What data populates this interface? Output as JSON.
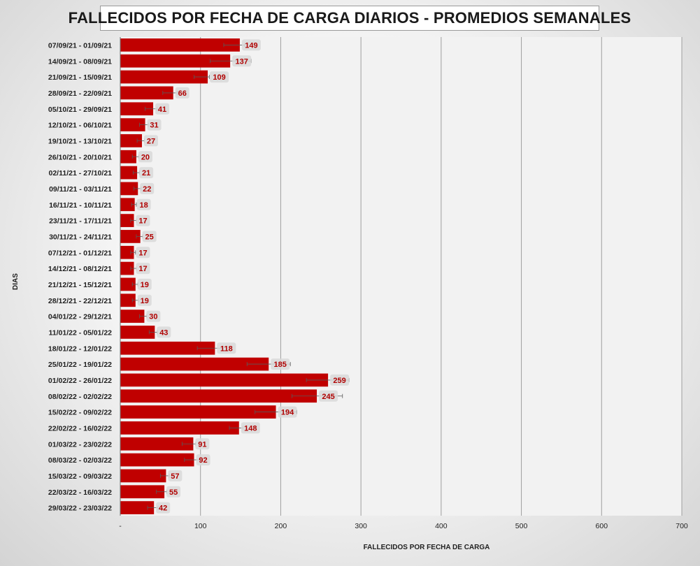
{
  "chart_data": {
    "type": "bar",
    "orientation": "horizontal",
    "title": "FALLECIDOS POR FECHA DE CARGA DIARIOS - PROMEDIOS SEMANALES",
    "xlabel": "FALLECIDOS POR FECHA DE CARGA",
    "ylabel": "DIAS",
    "xlim": [
      0,
      700
    ],
    "xticks": [
      0,
      100,
      200,
      300,
      400,
      500,
      600,
      700
    ],
    "xtick_labels": [
      "-",
      "100",
      "200",
      "300",
      "400",
      "500",
      "600",
      "700"
    ],
    "grid": "vertical",
    "bar_color": "#c00000",
    "label_color": "#b00000",
    "error_bars": true,
    "categories": [
      "07/09/21 - 01/09/21",
      "14/09/21 - 08/09/21",
      "21/09/21 - 15/09/21",
      "28/09/21 - 22/09/21",
      "05/10/21 - 29/09/21",
      "12/10/21 - 06/10/21",
      "19/10/21 - 13/10/21",
      "26/10/21 - 20/10/21",
      "02/11/21 - 27/10/21",
      "09/11/21 - 03/11/21",
      "16/11/21 - 10/11/21",
      "23/11/21 - 17/11/21",
      "30/11/21 - 24/11/21",
      "07/12/21 - 01/12/21",
      "14/12/21 - 08/12/21",
      "21/12/21 - 15/12/21",
      "28/12/21 - 22/12/21",
      "04/01/22 - 29/12/21",
      "11/01/22 - 05/01/22",
      "18/01/22 - 12/01/22",
      "25/01/22 - 19/01/22",
      "01/02/22 - 26/01/22",
      "08/02/22 - 02/02/22",
      "15/02/22 - 09/02/22",
      "22/02/22 - 16/02/22",
      "01/03/22 - 23/02/22",
      "08/03/22 - 02/03/22",
      "15/03/22 - 09/03/22",
      "22/03/22 - 16/03/22",
      "29/03/22 - 23/03/22"
    ],
    "values": [
      149,
      137,
      109,
      66,
      41,
      31,
      27,
      20,
      21,
      22,
      18,
      17,
      25,
      17,
      17,
      19,
      19,
      30,
      43,
      118,
      185,
      259,
      245,
      194,
      148,
      91,
      92,
      57,
      55,
      42
    ],
    "value_labels": [
      "149",
      "137",
      "109",
      "66",
      "41",
      "31",
      "27",
      "20",
      "21",
      "22",
      "18",
      "17",
      "25",
      "17",
      "17",
      "19",
      "19",
      "30",
      "43",
      "118",
      "185",
      "259",
      "245",
      "194",
      "148",
      "91",
      "92",
      "57",
      "55",
      "42"
    ],
    "error_low": [
      129,
      112,
      92,
      53,
      31,
      24,
      21,
      15,
      16,
      17,
      14,
      13,
      20,
      13,
      13,
      15,
      15,
      24,
      36,
      96,
      158,
      232,
      214,
      168,
      136,
      77,
      80,
      50,
      45,
      34
    ],
    "error_high": [
      155,
      163,
      111,
      71,
      46,
      35,
      30,
      23,
      24,
      26,
      20,
      20,
      28,
      19,
      20,
      22,
      23,
      33,
      46,
      128,
      212,
      285,
      277,
      220,
      153,
      94,
      100,
      61,
      58,
      47
    ]
  }
}
